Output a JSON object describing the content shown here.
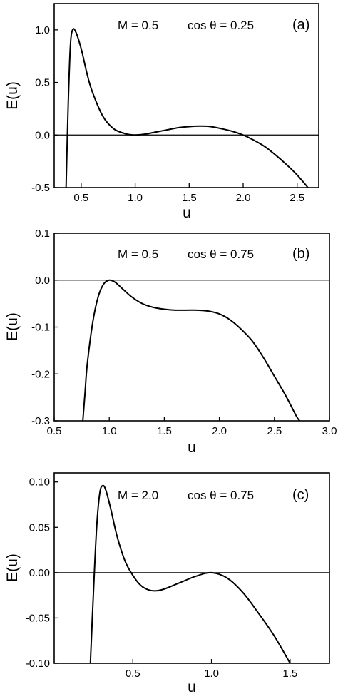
{
  "chart_data": [
    {
      "type": "line",
      "panel_label": "(a)",
      "annotation_m": "M = 0.5",
      "annotation_cos": "cos θ = 0.25",
      "xlabel": "u",
      "ylabel": "E(u)",
      "xlim": [
        0.25,
        2.7
      ],
      "ylim": [
        -0.5,
        1.25
      ],
      "xticks": [
        0.5,
        1.0,
        1.5,
        2.0,
        2.5
      ],
      "xtick_labels": [
        "0.5",
        "1.0",
        "1.5",
        "2.0",
        "2.5"
      ],
      "yticks": [
        -0.5,
        0.0,
        0.5,
        1.0
      ],
      "ytick_labels": [
        "-0.5",
        "0.0",
        "0.5",
        "1.0"
      ],
      "hline_y": 0.0,
      "series": [
        {
          "x": [
            0.36,
            0.38,
            0.4,
            0.42,
            0.45,
            0.5,
            0.55,
            0.6,
            0.7,
            0.8,
            0.9,
            0.95,
            1.0,
            1.1,
            1.2,
            1.3,
            1.4,
            1.5,
            1.6,
            1.7,
            1.8,
            1.9,
            2.0,
            2.1,
            2.2,
            2.3,
            2.4,
            2.5,
            2.6
          ],
          "y": [
            -0.5,
            0.3,
            0.85,
            1.0,
            0.98,
            0.82,
            0.6,
            0.42,
            0.18,
            0.06,
            0.015,
            0.004,
            0.0,
            0.01,
            0.03,
            0.05,
            0.07,
            0.08,
            0.085,
            0.08,
            0.06,
            0.035,
            0.0,
            -0.05,
            -0.11,
            -0.19,
            -0.28,
            -0.38,
            -0.5
          ]
        }
      ]
    },
    {
      "type": "line",
      "panel_label": "(b)",
      "annotation_m": "M = 0.5",
      "annotation_cos": "cos θ = 0.75",
      "xlabel": "u",
      "ylabel": "E(u)",
      "xlim": [
        0.5,
        3.0
      ],
      "ylim": [
        -0.3,
        0.1
      ],
      "xticks": [
        0.5,
        1.0,
        1.5,
        2.0,
        2.5,
        3.0
      ],
      "xtick_labels": [
        "0.5",
        "1.0",
        "1.5",
        "2.0",
        "2.5",
        "3.0"
      ],
      "yticks": [
        -0.3,
        -0.2,
        -0.1,
        0.0,
        0.1
      ],
      "ytick_labels": [
        "-0.3",
        "-0.2",
        "-0.1",
        "0.0",
        "0.1"
      ],
      "hline_y": 0.0,
      "series": [
        {
          "x": [
            0.76,
            0.78,
            0.8,
            0.85,
            0.9,
            0.95,
            1.0,
            1.05,
            1.1,
            1.2,
            1.3,
            1.4,
            1.5,
            1.6,
            1.7,
            1.8,
            1.9,
            2.0,
            2.1,
            2.2,
            2.3,
            2.4,
            2.5,
            2.6,
            2.7,
            2.73
          ],
          "y": [
            -0.3,
            -0.24,
            -0.18,
            -0.09,
            -0.035,
            -0.008,
            0.0,
            -0.004,
            -0.014,
            -0.035,
            -0.05,
            -0.058,
            -0.062,
            -0.064,
            -0.064,
            -0.064,
            -0.066,
            -0.072,
            -0.085,
            -0.105,
            -0.13,
            -0.165,
            -0.205,
            -0.245,
            -0.29,
            -0.3
          ]
        }
      ]
    },
    {
      "type": "line",
      "panel_label": "(c)",
      "annotation_m": "M = 2.0",
      "annotation_cos": "cos θ = 0.75",
      "xlabel": "u",
      "ylabel": "E(u)",
      "xlim": [
        0.0,
        1.75
      ],
      "ylim": [
        -0.1,
        0.11
      ],
      "xticks": [
        0.5,
        1.0,
        1.5
      ],
      "xtick_labels": [
        "0.5",
        "1.0",
        "1.5"
      ],
      "yticks": [
        -0.1,
        -0.05,
        0.0,
        0.05,
        0.1
      ],
      "ytick_labels": [
        "-0.10",
        "-0.05",
        "0.00",
        "0.05",
        "0.10"
      ],
      "hline_y": 0.0,
      "series": [
        {
          "x": [
            0.23,
            0.25,
            0.27,
            0.29,
            0.31,
            0.33,
            0.36,
            0.4,
            0.45,
            0.5,
            0.55,
            0.6,
            0.65,
            0.7,
            0.8,
            0.9,
            1.0,
            1.1,
            1.2,
            1.3,
            1.4,
            1.5
          ],
          "y": [
            -0.1,
            -0.02,
            0.05,
            0.088,
            0.096,
            0.09,
            0.07,
            0.04,
            0.013,
            -0.003,
            -0.014,
            -0.019,
            -0.02,
            -0.018,
            -0.011,
            -0.004,
            0.0,
            -0.006,
            -0.022,
            -0.045,
            -0.07,
            -0.1
          ]
        }
      ]
    }
  ]
}
